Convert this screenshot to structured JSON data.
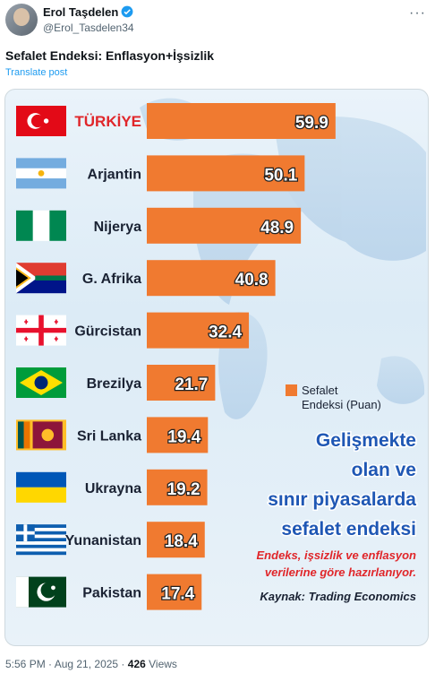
{
  "tweet": {
    "author_name": "Erol Taşdelen",
    "handle": "@Erol_Tasdelen34",
    "text": "Sefalet Endeksi: Enflasyon+İşsizlik",
    "translate_label": "Translate post",
    "time": "5:56 PM · Aug 21, 2025 ·",
    "views_count": "426",
    "views_label": "Views",
    "more_glyph": "···"
  },
  "colors": {
    "bar": "#f07a30",
    "verified": "#1d9bf0",
    "link": "#1d9bf0",
    "title_blue": "#1f57b4",
    "note_red": "#e0262a"
  },
  "chart_data": {
    "type": "bar",
    "orientation": "horizontal",
    "categories": [
      "TÜRKİYE",
      "Arjantin",
      "Nijerya",
      "G. Afrika",
      "Gürcistan",
      "Brezilya",
      "Sri Lanka",
      "Ukrayna",
      "Yunanistan",
      "Pakistan"
    ],
    "values": [
      59.9,
      50.1,
      48.9,
      40.8,
      32.4,
      21.7,
      19.4,
      19.2,
      18.4,
      17.4
    ],
    "value_labels": [
      "59.9",
      "50.1",
      "48.9",
      "40.8",
      "32.4",
      "21.7",
      "19.4",
      "19.2",
      "18.4",
      "17.4"
    ],
    "flags": [
      "turkey-flag",
      "argentina-flag",
      "nigeria-flag",
      "south-africa-flag",
      "georgia-flag",
      "brazil-flag",
      "sri-lanka-flag",
      "ukraine-flag",
      "greece-flag",
      "pakistan-flag"
    ],
    "legend": "Sefalet Endeksi (Puan)",
    "legend_line1": "Sefalet",
    "legend_line2": "Endeksi (Puan)",
    "title_lines": [
      "Gelişmekte",
      "olan ve",
      "sınır piyasalarda",
      "sefalet endeksi"
    ],
    "note_lines": [
      "Endeks, işsizlik ve enflasyon",
      "verilerine göre hazırlanıyor."
    ],
    "source": "Kaynak: Trading Economics"
  }
}
